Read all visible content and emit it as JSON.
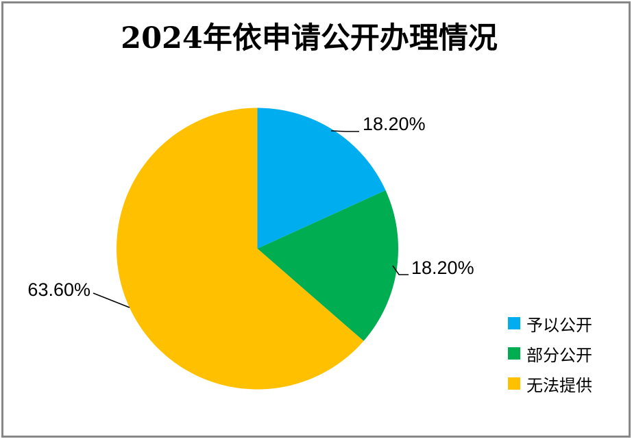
{
  "window": {
    "background": "#FFFFFF",
    "border_color": "#878787"
  },
  "chart_data": {
    "type": "pie",
    "title": "2024年依申请公开办理情况",
    "categories": [
      "予以公开",
      "部分公开",
      "无法提供"
    ],
    "values": [
      18.2,
      18.2,
      63.6
    ],
    "labels": [
      "18.20%",
      "18.20%",
      "63.60%"
    ],
    "colors": [
      "#00AEEF",
      "#00AD50",
      "#FFC000"
    ],
    "label_color": "#000000",
    "leader_line_color": "#000000",
    "legend_position": "bottom-right",
    "start_angle_deg": 0,
    "direction": "clockwise"
  }
}
